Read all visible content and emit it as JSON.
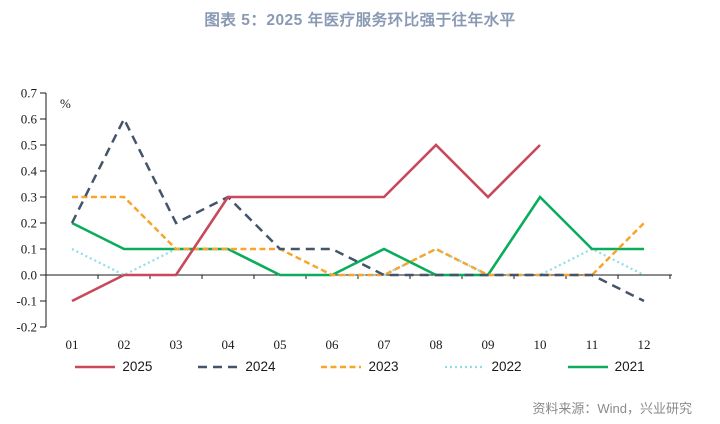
{
  "header": {
    "title": "图表 5：2025 年医疗服务环比强于往年水平"
  },
  "footer": {
    "source": "资料来源：Wind，兴业研究"
  },
  "colors": {
    "title_text": "#8A9AB5",
    "axis": "#1a1a1a",
    "source_text": "#8a8a8a"
  },
  "chart_data": {
    "type": "line",
    "title": "图表 5：2025 年医疗服务环比强于往年水平",
    "unit_label": "%",
    "xlabel": "",
    "ylabel": "%",
    "categories": [
      "01",
      "02",
      "03",
      "04",
      "05",
      "06",
      "07",
      "08",
      "09",
      "10",
      "11",
      "12"
    ],
    "series": [
      {
        "name": "2025",
        "color": "#C7495B",
        "style": "solid",
        "values": [
          -0.1,
          0.0,
          0.0,
          0.3,
          0.3,
          0.3,
          0.3,
          0.5,
          0.3,
          0.5,
          null,
          null
        ]
      },
      {
        "name": "2024",
        "color": "#44546A",
        "style": "long-dash",
        "values": [
          0.2,
          0.6,
          0.2,
          0.3,
          0.1,
          0.1,
          0.0,
          0.0,
          0.0,
          0.0,
          0.0,
          -0.1
        ]
      },
      {
        "name": "2023",
        "color": "#F7A52B",
        "style": "dash",
        "values": [
          0.3,
          0.3,
          0.1,
          0.1,
          0.1,
          0.0,
          0.0,
          0.1,
          0.0,
          0.0,
          0.0,
          0.2
        ]
      },
      {
        "name": "2022",
        "color": "#8EDDE9",
        "style": "dot",
        "values": [
          0.1,
          0.0,
          0.1,
          0.1,
          0.0,
          0.0,
          0.0,
          0.1,
          0.0,
          0.0,
          0.1,
          0.0
        ]
      },
      {
        "name": "2021",
        "color": "#0BAD5D",
        "style": "solid",
        "values": [
          0.2,
          0.1,
          0.1,
          0.1,
          0.0,
          0.0,
          0.1,
          0.0,
          0.0,
          0.3,
          0.1,
          0.1
        ]
      }
    ],
    "ylim": [
      -0.2,
      0.7
    ],
    "ytick_step": 0.1,
    "grid": false,
    "legend_position": "bottom",
    "legend_order": [
      "2025",
      "2024",
      "2023",
      "2022",
      "2021"
    ],
    "draw_order": [
      "2022",
      "2021",
      "2023",
      "2024",
      "2025"
    ]
  }
}
